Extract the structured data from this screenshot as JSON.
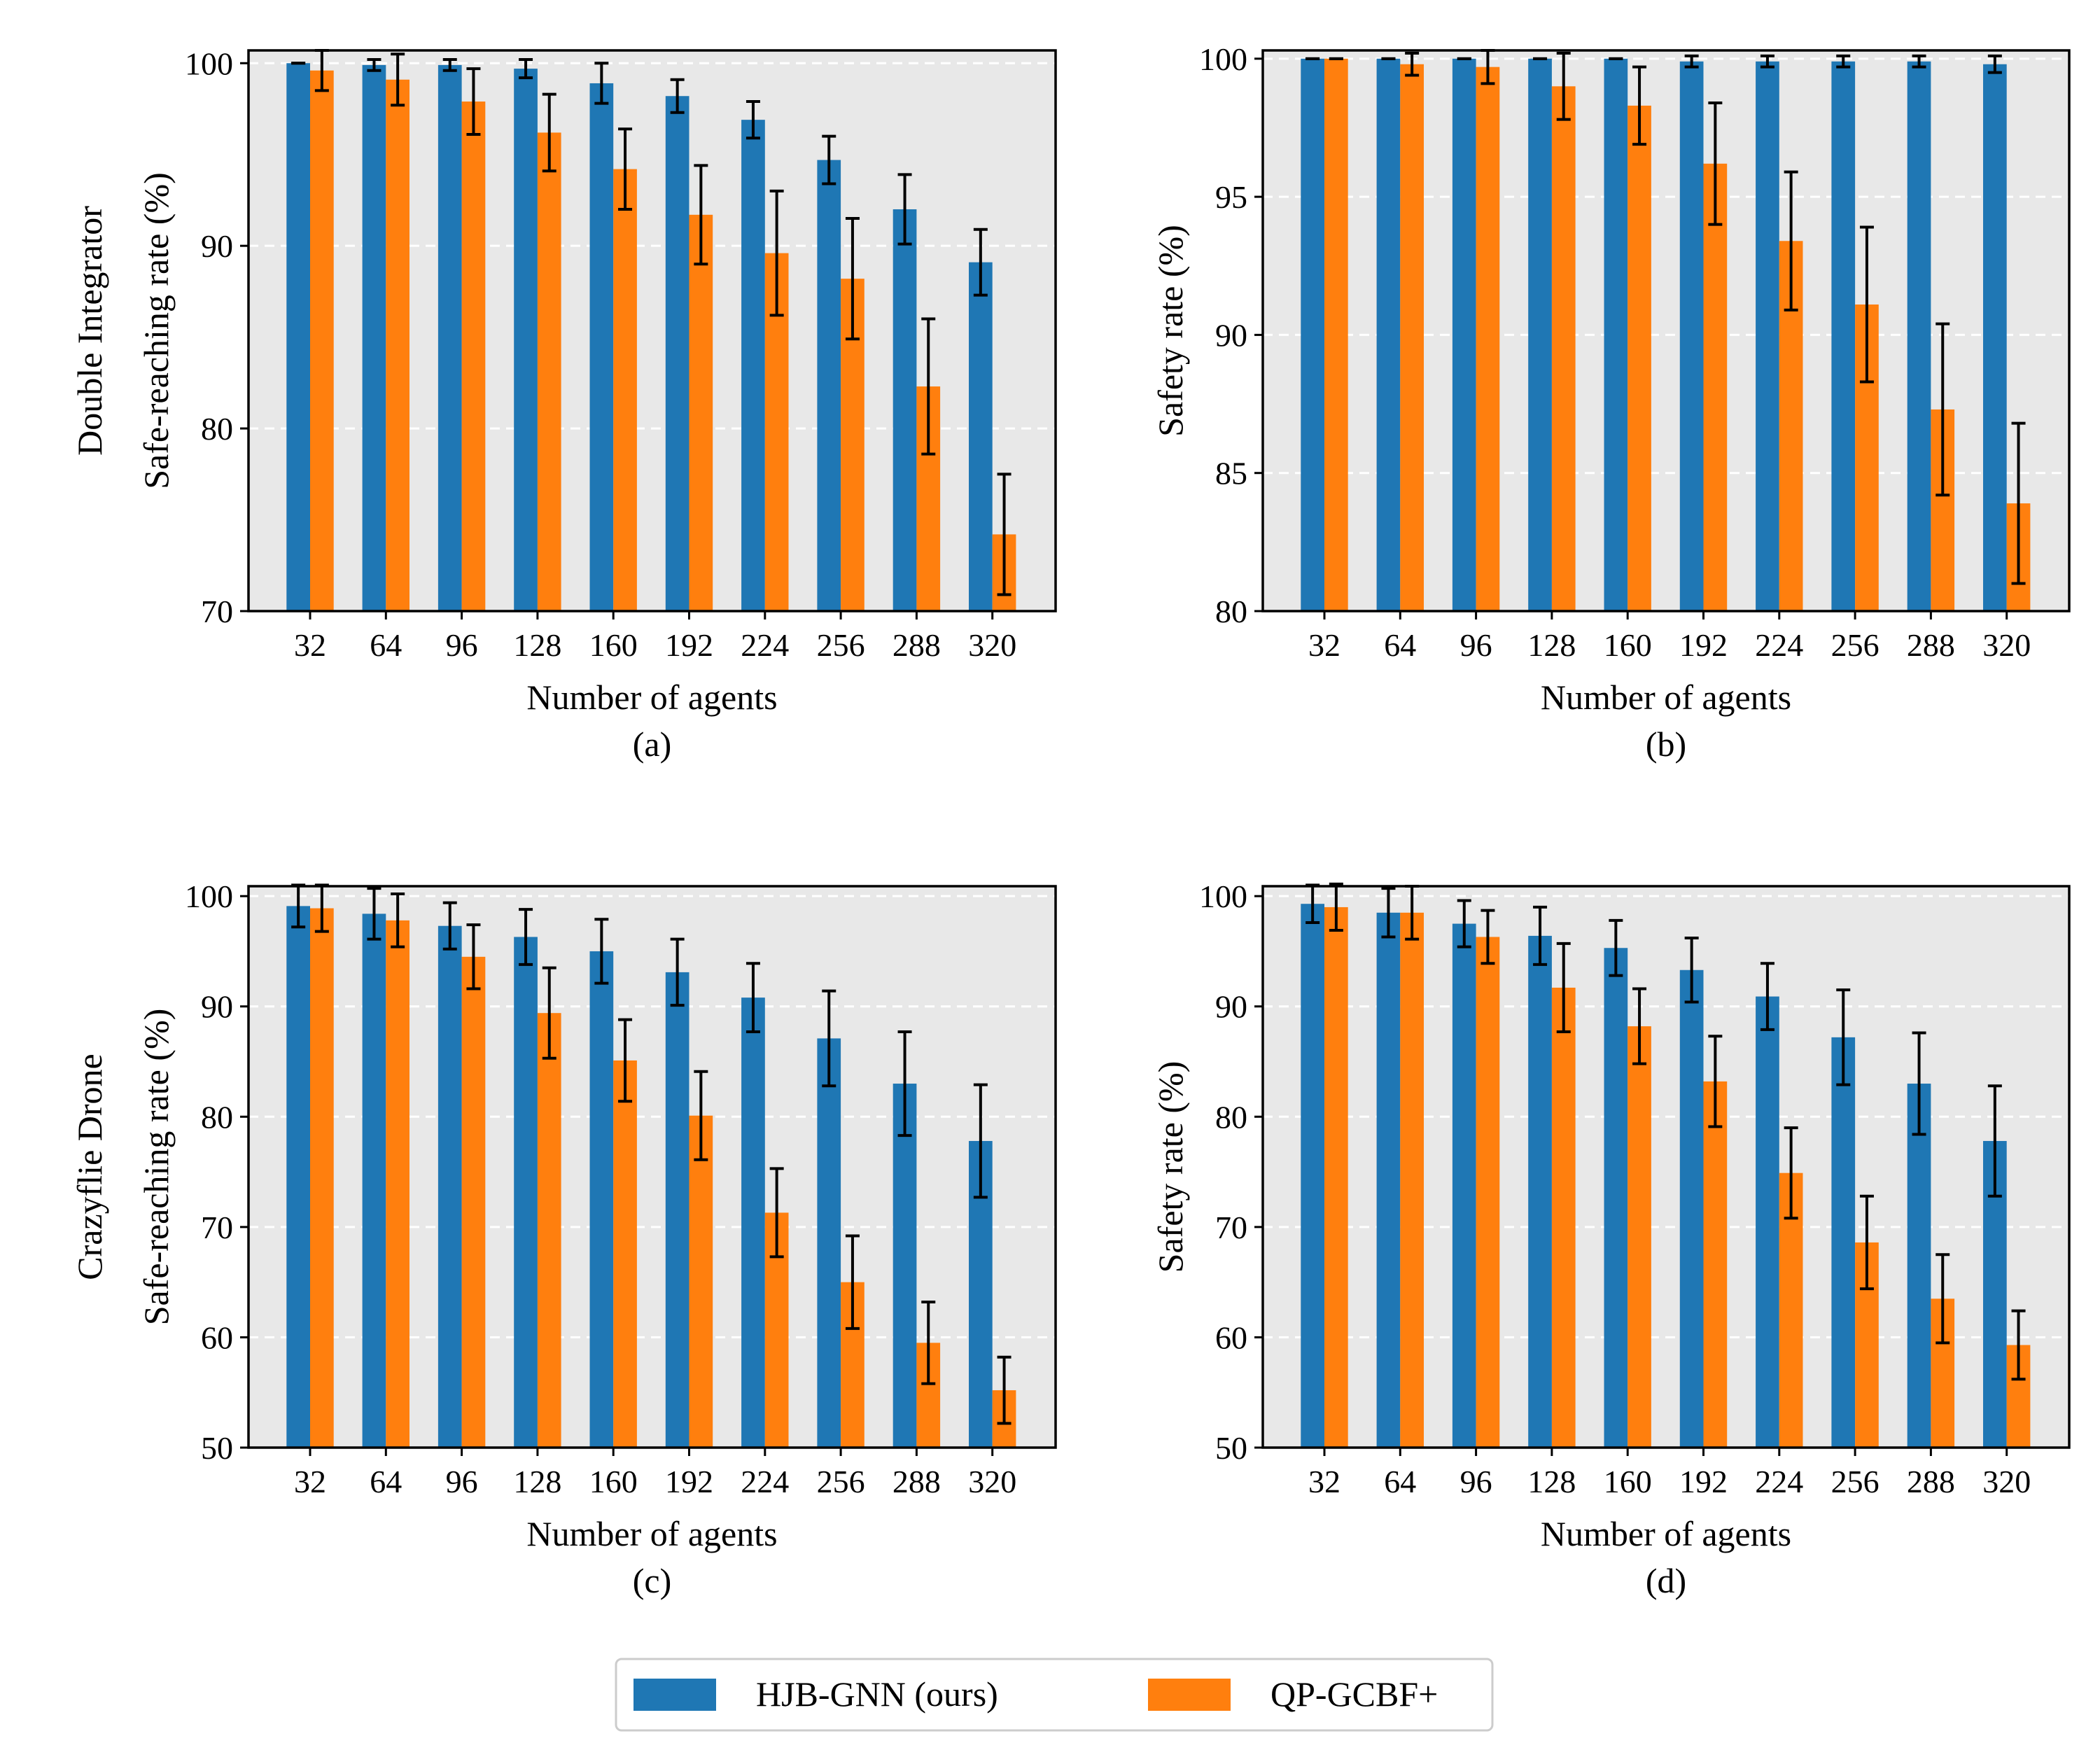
{
  "chart_data": [
    {
      "type": "bar",
      "panel_label": "(a)",
      "row_label": "Double Integrator",
      "xlabel": "Number of agents",
      "ylabel": "Safe-reaching rate (%)",
      "ylim": [
        70,
        100.7
      ],
      "yticks": [
        70,
        80,
        90,
        100
      ],
      "grid": true,
      "categories": [
        "32",
        "64",
        "96",
        "128",
        "160",
        "192",
        "224",
        "256",
        "288",
        "320"
      ],
      "series": [
        {
          "name": "HJB-GNN (ours)",
          "values": [
            100.0,
            99.9,
            99.9,
            99.7,
            98.9,
            98.2,
            96.9,
            94.7,
            92.0,
            89.1
          ],
          "errors": [
            0.0,
            0.3,
            0.3,
            0.5,
            1.1,
            0.9,
            1.0,
            1.3,
            1.9,
            1.8
          ]
        },
        {
          "name": "QP-GCBF+",
          "values": [
            99.6,
            99.1,
            97.9,
            96.2,
            94.2,
            91.7,
            89.6,
            88.2,
            82.3,
            74.2
          ],
          "errors": [
            1.1,
            1.4,
            1.8,
            2.1,
            2.2,
            2.7,
            3.4,
            3.3,
            3.7,
            3.3
          ]
        }
      ]
    },
    {
      "type": "bar",
      "panel_label": "(b)",
      "row_label": "",
      "xlabel": "Number of agents",
      "ylabel": "Safety rate (%)",
      "ylim": [
        80,
        100.3
      ],
      "yticks": [
        80,
        85,
        90,
        95,
        100
      ],
      "grid": true,
      "categories": [
        "32",
        "64",
        "96",
        "128",
        "160",
        "192",
        "224",
        "256",
        "288",
        "320"
      ],
      "series": [
        {
          "name": "HJB-GNN (ours)",
          "values": [
            100.0,
            100.0,
            100.0,
            100.0,
            100.0,
            99.9,
            99.9,
            99.9,
            99.9,
            99.8
          ],
          "errors": [
            0.0,
            0.0,
            0.0,
            0.0,
            0.0,
            0.2,
            0.2,
            0.2,
            0.2,
            0.3
          ]
        },
        {
          "name": "QP-GCBF+",
          "values": [
            100.0,
            99.8,
            99.7,
            99.0,
            98.3,
            96.2,
            93.4,
            91.1,
            87.3,
            83.9
          ],
          "errors": [
            0.0,
            0.4,
            0.6,
            1.2,
            1.4,
            2.2,
            2.5,
            2.8,
            3.1,
            2.9
          ]
        }
      ]
    },
    {
      "type": "bar",
      "panel_label": "(c)",
      "row_label": "Crazyflie Drone",
      "xlabel": "Number of agents",
      "ylabel": "Safe-reaching rate (%)",
      "ylim": [
        50,
        100.9
      ],
      "yticks": [
        50,
        60,
        70,
        80,
        90,
        100
      ],
      "grid": true,
      "categories": [
        "32",
        "64",
        "96",
        "128",
        "160",
        "192",
        "224",
        "256",
        "288",
        "320"
      ],
      "series": [
        {
          "name": "HJB-GNN (ours)",
          "values": [
            99.1,
            98.4,
            97.3,
            96.3,
            95.0,
            93.1,
            90.8,
            87.1,
            83.0,
            77.8
          ],
          "errors": [
            1.9,
            2.3,
            2.1,
            2.5,
            2.9,
            3.0,
            3.1,
            4.3,
            4.7,
            5.1
          ]
        },
        {
          "name": "QP-GCBF+",
          "values": [
            98.9,
            97.8,
            94.5,
            89.4,
            85.1,
            80.1,
            71.3,
            65.0,
            59.5,
            55.2
          ],
          "errors": [
            2.1,
            2.4,
            2.9,
            4.1,
            3.7,
            4.0,
            4.0,
            4.2,
            3.7,
            3.0
          ]
        }
      ]
    },
    {
      "type": "bar",
      "panel_label": "(d)",
      "row_label": "",
      "xlabel": "Number of agents",
      "ylabel": "Safety rate (%)",
      "ylim": [
        50,
        100.9
      ],
      "yticks": [
        50,
        60,
        70,
        80,
        90,
        100
      ],
      "grid": true,
      "categories": [
        "32",
        "64",
        "96",
        "128",
        "160",
        "192",
        "224",
        "256",
        "288",
        "320"
      ],
      "series": [
        {
          "name": "HJB-GNN (ours)",
          "values": [
            99.3,
            98.5,
            97.5,
            96.4,
            95.3,
            93.3,
            90.9,
            87.2,
            83.0,
            77.8
          ],
          "errors": [
            1.7,
            2.2,
            2.1,
            2.6,
            2.5,
            2.9,
            3.0,
            4.3,
            4.6,
            5.0
          ]
        },
        {
          "name": "QP-GCBF+",
          "values": [
            99.0,
            98.5,
            96.3,
            91.7,
            88.2,
            83.2,
            74.9,
            68.6,
            63.5,
            59.3
          ],
          "errors": [
            2.1,
            2.4,
            2.4,
            4.0,
            3.4,
            4.1,
            4.1,
            4.2,
            4.0,
            3.1
          ]
        }
      ]
    }
  ],
  "legend": {
    "items": [
      {
        "label": "HJB-GNN (ours)",
        "color": "#1f77b4"
      },
      {
        "label": "QP-GCBF+",
        "color": "#ff7f0e"
      }
    ]
  },
  "colors": {
    "series": [
      "#1f77b4",
      "#ff7f0e"
    ],
    "plot_bg": "#e8e8e8",
    "grid": "#ffffff",
    "error": "#000000"
  }
}
